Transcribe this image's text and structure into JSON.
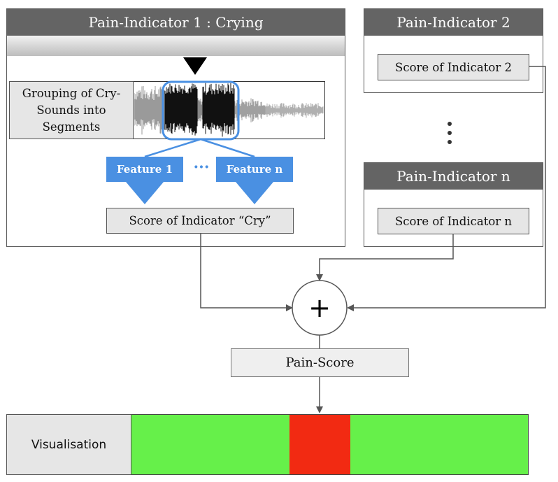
{
  "panel1": {
    "title": "Pain-Indicator 1 : Crying",
    "grouping_label": "Grouping of Cry-Sounds into Segments",
    "feature_1": "Feature 1",
    "feature_dots": "···",
    "feature_n": "Feature n",
    "score_label": "Score of Indicator “Cry”"
  },
  "panel2": {
    "title": "Pain-Indicator 2",
    "score_label": "Score of Indicator 2"
  },
  "panel_n": {
    "title": "Pain-Indicator n",
    "score_label": "Score of Indicator n"
  },
  "sum_symbol": "+",
  "pain_score_label": "Pain-Score",
  "visualisation": {
    "label": "Visualisation",
    "green_color": "#66f04a",
    "red_color": "#f22a12",
    "marker_position": 0.4
  },
  "colors": {
    "header": "#646464",
    "feature_blue": "#4a90e2",
    "box_fill": "#e6e6e6"
  }
}
